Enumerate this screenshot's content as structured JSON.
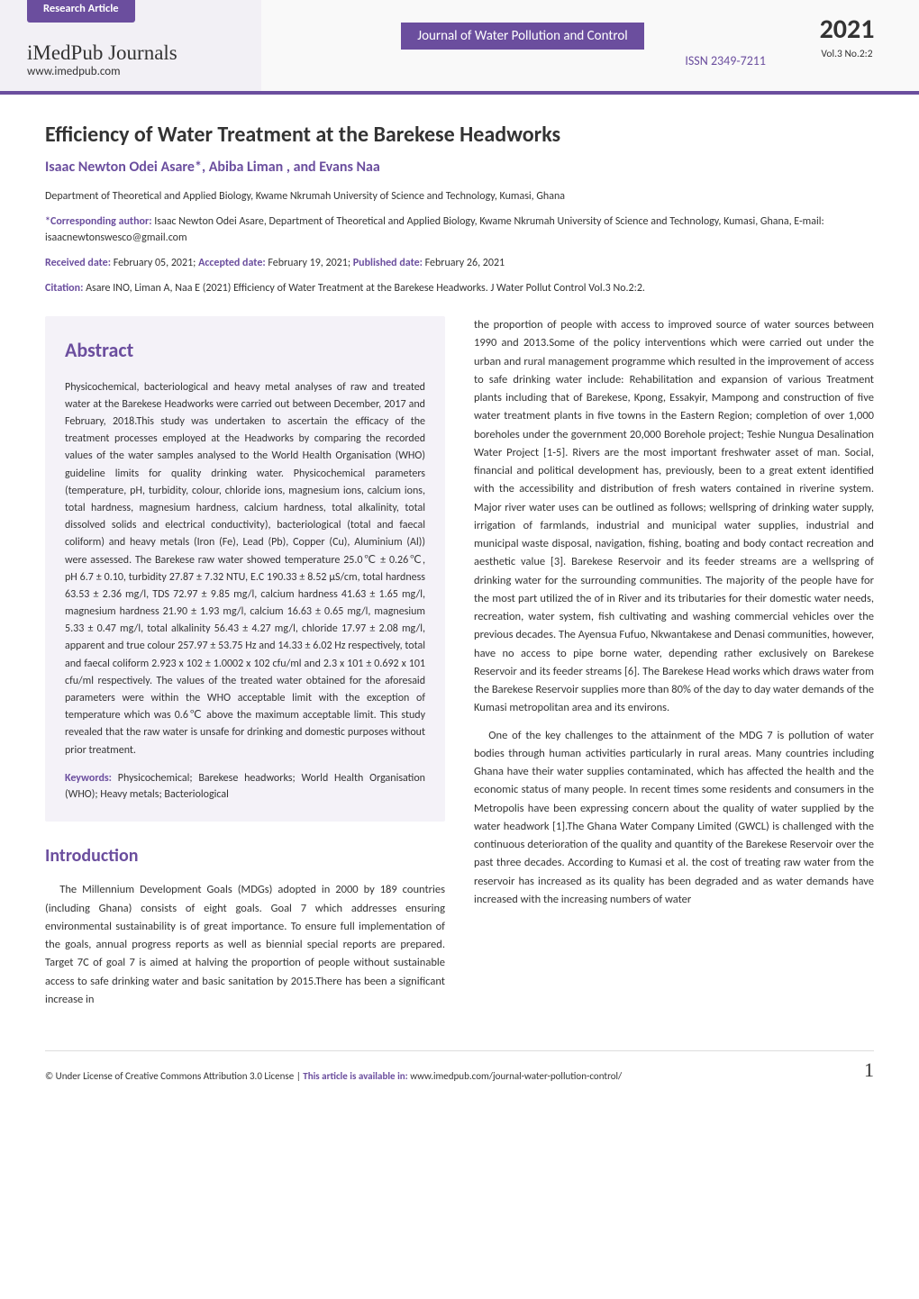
{
  "header": {
    "badge": "Research Article",
    "journals_name": "iMedPub Journals",
    "journals_url": "www.imedpub.com",
    "journal_title": "Journal of Water Pollution and Control",
    "issn": "ISSN 2349-7211",
    "year": "2021",
    "volume": "Vol.3 No.2:2"
  },
  "article": {
    "title": "Efficiency of Water Treatment at the Barekese Headworks",
    "authors": "Isaac Newton Odei Asare*, Abiba Liman , and Evans Naa",
    "affiliation": "Department of Theoretical and Applied Biology, Kwame Nkrumah University of Science and Technology, Kumasi, Ghana",
    "corresponding_label": "*Corresponding author:",
    "corresponding_text": " Isaac Newton Odei Asare, Department of Theoretical and Applied Biology, Kwame Nkrumah University of Science and Technology, Kumasi, Ghana, E-mail: isaacnewtonswesco@gmail.com",
    "received_label": "Received date:",
    "received": " February 05, 2021; ",
    "accepted_label": "Accepted date:",
    "accepted": " February 19, 2021; ",
    "published_label": "Published date:",
    "published": " February 26, 2021",
    "citation_label": "Citation:",
    "citation": " Asare INO, Liman A, Naa E (2021) Efficiency of Water Treatment at the Barekese Headworks. J Water Pollut Control Vol.3 No.2:2."
  },
  "abstract": {
    "heading": "Abstract",
    "body": "Physicochemical, bacteriological and heavy metal analyses of raw and treated water at the Barekese Headworks were carried out between December, 2017 and February, 2018.This study was undertaken to ascertain the efficacy of the treatment processes employed at the Headworks by comparing the recorded values of the water samples analysed to the World Health Organisation (WHO) guideline limits for quality drinking water. Physicochemical parameters (temperature, pH, turbidity, colour, chloride ions, magnesium ions, calcium ions, total hardness, magnesium hardness, calcium hardness, total alkalinity, total dissolved solids and electrical conductivity), bacteriological (total and faecal coliform) and heavy metals (Iron (Fe), Lead (Pb), Copper (Cu), Aluminium (Al)) were assessed. The Barekese raw water showed temperature 25.0℃ ± 0.26℃, pH 6.7 ± 0.10, turbidity 27.87 ± 7.32 NTU, E.C 190.33 ± 8.52 μS/cm, total hardness 63.53 ± 2.36 mg/l, TDS 72.97 ± 9.85 mg/l, calcium hardness 41.63 ± 1.65 mg/l, magnesium hardness 21.90 ± 1.93 mg/l, calcium 16.63 ± 0.65 mg/l, magnesium 5.33 ± 0.47 mg/l, total alkalinity 56.43 ± 4.27 mg/l, chloride 17.97 ± 2.08 mg/l, apparent and true colour 257.97 ± 53.75 Hz and 14.33 ± 6.02 Hz respectively, total and faecal coliform 2.923 x 102 ± 1.0002 x 102 cfu/ml and 2.3 x 101 ± 0.692 x 101 cfu/ml respectively. The values of the treated water obtained for the aforesaid parameters were within the WHO acceptable limit with the exception of temperature which was 0.6℃ above the maximum acceptable limit. This study revealed that the raw water is unsafe for drinking and domestic purposes without prior treatment.",
    "keywords_label": "Keywords:",
    "keywords": " Physicochemical; Barekese headworks; World Health Organisation (WHO); Heavy metals; Bacteriological"
  },
  "introduction": {
    "heading": "Introduction",
    "p1": "The Millennium Development Goals (MDGs) adopted in 2000 by 189 countries (including Ghana) consists of eight goals. Goal 7 which addresses ensuring environmental sustainability is of great importance. To ensure full implementation of the goals, annual progress reports as well as biennial special reports are prepared. Target 7C of goal 7 is aimed at halving the proportion of people without sustainable access to safe drinking water and basic sanitation by 2015.There has been a significant increase in",
    "p2": "the proportion of people with access to improved source of water sources between 1990 and 2013.Some of the policy interventions which were carried out under the urban and rural management programme which resulted in the improvement of access to safe drinking water include: Rehabilitation and expansion of various Treatment plants including that of Barekese, Kpong, Essakyir, Mampong and construction of five water treatment plants in five towns in the Eastern Region; completion of over 1,000 boreholes under the government 20,000 Borehole project; Teshie Nungua Desalination Water Project [1-5]. Rivers are the most important freshwater asset of man. Social, financial and political development has, previously, been to a great extent identified with the accessibility and distribution of fresh waters contained in riverine system. Major river water uses can be outlined as follows; wellspring of drinking water supply, irrigation of farmlands, industrial and municipal water supplies, industrial and municipal waste disposal, navigation, fishing, boating and body contact recreation and aesthetic value [3]. Barekese Reservoir and its feeder streams are a wellspring of drinking water for the surrounding communities. The majority of the people have for the most part utilized the of in River and its tributaries for their domestic water needs, recreation, water system, fish cultivating and washing commercial vehicles over the previous decades. The Ayensua Fufuo, Nkwantakese and Denasi communities, however, have no access to pipe borne water, depending rather exclusively on Barekese Reservoir and its feeder streams [6]. The Barekese Head works which draws water from the Barekese Reservoir supplies more than 80% of the day to day water demands of the Kumasi metropolitan area and its environs.",
    "p3": "One of the key challenges to the attainment of the MDG 7 is pollution of water bodies through human activities particularly in rural areas. Many countries including Ghana have their water supplies contaminated, which has affected the health and the economic status of many people. In recent times some residents and consumers in the Metropolis have been expressing concern about the quality of water supplied by the water headwork [1].The Ghana Water Company Limited (GWCL) is challenged with the continuous deterioration of the quality and quantity of the Barekese Reservoir over the past three decades. According to Kumasi et al. the cost of treating raw water from the reservoir has increased as its quality has been degraded and as water demands have increased with the increasing numbers of water"
  },
  "footer": {
    "license": "© Under License of Creative Commons Attribution 3.0 License | ",
    "avail_label": "This article is available in:",
    "avail_url": " www.imedpub.com/journal-water-pollution-control/",
    "page_number": "1"
  },
  "style": {
    "accent_color": "#6b4e9e",
    "abstract_bg": "#f4f2f8",
    "text_color": "#333333",
    "body_fontsize_pt": 9.5,
    "heading_fontsize_pt": 16,
    "title_fontsize_pt": 18
  }
}
